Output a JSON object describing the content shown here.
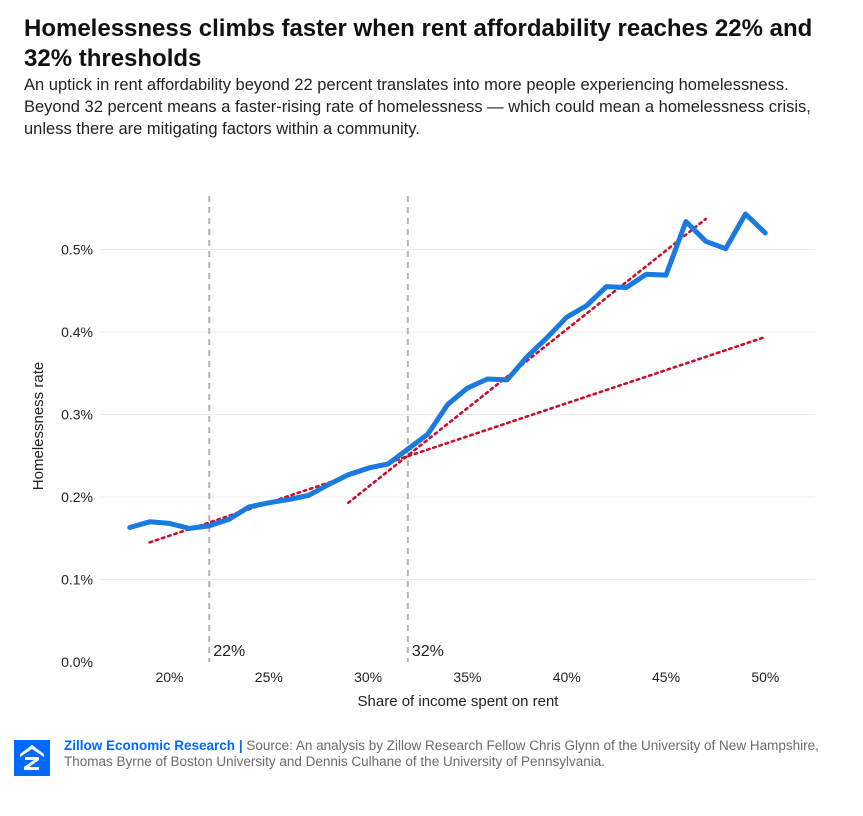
{
  "header": {
    "title": "Homelessness climbs faster when rent affordability reaches 22% and 32% thresholds",
    "subtitle": "An uptick in rent affordability beyond 22 percent translates into more people experiencing homelessness. Beyond 32 percent means a faster-rising rate of homelessness — which could mean a homelessness crisis, unless there are mitigating factors within a community."
  },
  "footer": {
    "brand": "Zillow Economic Research",
    "separator": "|",
    "source": "Source: An analysis by Zillow Research Fellow Chris Glynn of the University of New Hampshire, Thomas Byrne of Boston University and Dennis Culhane of the University of Pennsylvania.",
    "logo_icon": "zillow-z-icon"
  },
  "colors": {
    "line": "#1a7ae0",
    "trend": "#c8102e",
    "threshold": "#b5b5b5",
    "grid": "#ececec",
    "brand": "#006AFF"
  },
  "chart_data": {
    "type": "line",
    "xlabel": "Share of income spent on rent",
    "ylabel": "Homelessness rate",
    "xlim": [
      16.5,
      52.5
    ],
    "ylim": [
      0.0,
      0.56
    ],
    "x_ticks": [
      20,
      25,
      30,
      35,
      40,
      45,
      50
    ],
    "x_tick_labels": [
      "20%",
      "25%",
      "30%",
      "35%",
      "40%",
      "45%",
      "50%"
    ],
    "y_ticks": [
      0.0,
      0.1,
      0.2,
      0.3,
      0.4,
      0.5
    ],
    "y_tick_labels": [
      "0.0%",
      "0.1%",
      "0.2%",
      "0.3%",
      "0.4%",
      "0.5%"
    ],
    "grid": true,
    "series": [
      {
        "x": [
          18,
          19,
          20,
          21,
          22,
          23,
          24,
          25,
          26,
          27,
          28,
          29,
          30,
          31,
          32,
          33,
          34,
          35,
          36,
          37,
          38,
          39,
          40,
          41,
          42,
          43,
          44,
          45,
          46,
          47,
          48,
          49,
          50
        ],
        "values": [
          0.163,
          0.17,
          0.168,
          0.162,
          0.165,
          0.173,
          0.188,
          0.193,
          0.197,
          0.202,
          0.215,
          0.227,
          0.235,
          0.24,
          0.258,
          0.276,
          0.312,
          0.332,
          0.343,
          0.342,
          0.37,
          0.393,
          0.418,
          0.432,
          0.455,
          0.454,
          0.47,
          0.469,
          0.534,
          0.51,
          0.501,
          0.543,
          0.52
        ]
      }
    ],
    "trend_lines": [
      {
        "x": [
          19,
          50
        ],
        "values": [
          0.145,
          0.394
        ]
      },
      {
        "x": [
          29,
          47
        ],
        "values": [
          0.193,
          0.537
        ]
      }
    ],
    "thresholds": [
      {
        "x": 22,
        "label": "22%"
      },
      {
        "x": 32,
        "label": "32%"
      }
    ]
  }
}
